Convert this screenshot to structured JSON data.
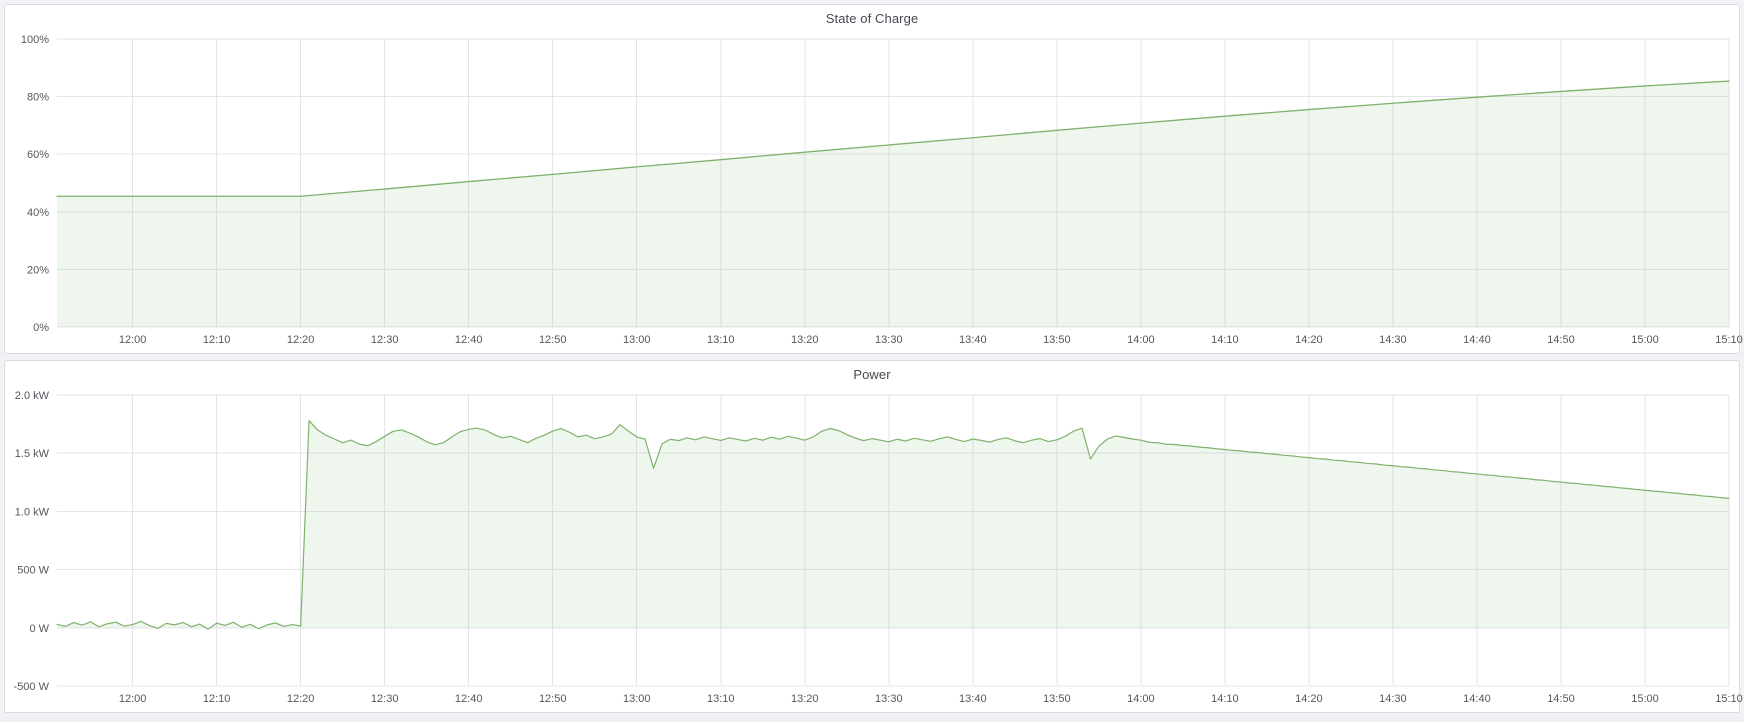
{
  "theme": {
    "page_background": "#f1f2f6",
    "panel_background": "#ffffff",
    "panel_border": "#d9dbe0",
    "grid_color": "#e4e5e9",
    "axis_label_color": "#54575d",
    "title_color": "#434951",
    "series_green": "#7eb26d"
  },
  "chart_data": [
    {
      "type": "area",
      "title": "State of Charge",
      "xlabel": "",
      "ylabel": "",
      "grid": true,
      "legend": "none",
      "x_domain_minutes": [
        711,
        910
      ],
      "x_ticks": {
        "start_minute": 720,
        "step_minute": 10,
        "labels": [
          "12:00",
          "12:10",
          "12:20",
          "12:30",
          "12:40",
          "12:50",
          "13:00",
          "13:10",
          "13:20",
          "13:30",
          "13:40",
          "13:50",
          "14:00",
          "14:10",
          "14:20",
          "14:30",
          "14:40",
          "14:50",
          "15:00",
          "15:10"
        ]
      },
      "ylim": [
        0,
        100
      ],
      "y_ticks": [
        {
          "v": 0,
          "label": "0%"
        },
        {
          "v": 20,
          "label": "20%"
        },
        {
          "v": 40,
          "label": "40%"
        },
        {
          "v": 60,
          "label": "60%"
        },
        {
          "v": 80,
          "label": "80%"
        },
        {
          "v": 100,
          "label": "100%"
        }
      ],
      "series": [
        {
          "name": "State of Charge",
          "color": "#7eb26d",
          "fill_opacity": 0.12,
          "fill_to": 0,
          "line_width": 1.3,
          "points": [
            [
              711,
              45.4
            ],
            [
              740,
              45.4
            ],
            [
              750,
              47.9
            ],
            [
              760,
              50.5
            ],
            [
              770,
              53.0
            ],
            [
              780,
              55.6
            ],
            [
              790,
              58.1
            ],
            [
              800,
              60.7
            ],
            [
              810,
              63.2
            ],
            [
              820,
              65.7
            ],
            [
              830,
              68.3
            ],
            [
              840,
              70.8
            ],
            [
              850,
              73.2
            ],
            [
              860,
              75.5
            ],
            [
              870,
              77.7
            ],
            [
              880,
              79.8
            ],
            [
              890,
              81.8
            ],
            [
              900,
              83.7
            ],
            [
              910,
              85.4
            ]
          ]
        }
      ]
    },
    {
      "type": "area",
      "title": "Power",
      "xlabel": "",
      "ylabel": "",
      "grid": true,
      "legend": "none",
      "x_domain_minutes": [
        711,
        910
      ],
      "x_ticks": {
        "start_minute": 720,
        "step_minute": 10,
        "labels": [
          "12:00",
          "12:10",
          "12:20",
          "12:30",
          "12:40",
          "12:50",
          "13:00",
          "13:10",
          "13:20",
          "13:30",
          "13:40",
          "13:50",
          "14:00",
          "14:10",
          "14:20",
          "14:30",
          "14:40",
          "14:50",
          "15:00",
          "15:10"
        ]
      },
      "ylim": [
        -500,
        2000
      ],
      "y_ticks": [
        {
          "v": -500,
          "label": "-500 W"
        },
        {
          "v": 0,
          "label": "0 W"
        },
        {
          "v": 500,
          "label": "500 W"
        },
        {
          "v": 1000,
          "label": "1.0 kW"
        },
        {
          "v": 1500,
          "label": "1.5 kW"
        },
        {
          "v": 2000,
          "label": "2.0 kW"
        }
      ],
      "series": [
        {
          "name": "Power",
          "color": "#7eb26d",
          "fill_opacity": 0.12,
          "fill_to": 0,
          "line_width": 1.2,
          "t0": 711,
          "dt": 1,
          "values": [
            30,
            12,
            45,
            22,
            52,
            8,
            35,
            48,
            15,
            28,
            55,
            18,
            -5,
            38,
            25,
            45,
            10,
            32,
            -12,
            40,
            20,
            48,
            5,
            30,
            -8,
            25,
            42,
            12,
            28,
            15,
            1780,
            1700,
            1655,
            1622,
            1590,
            1612,
            1578,
            1565,
            1600,
            1645,
            1688,
            1700,
            1672,
            1640,
            1598,
            1572,
            1590,
            1640,
            1685,
            1705,
            1715,
            1698,
            1660,
            1632,
            1645,
            1618,
            1590,
            1628,
            1655,
            1690,
            1712,
            1680,
            1640,
            1655,
            1625,
            1640,
            1665,
            1745,
            1690,
            1640,
            1620,
            1370,
            1580,
            1620,
            1608,
            1632,
            1615,
            1640,
            1625,
            1610,
            1632,
            1618,
            1605,
            1628,
            1612,
            1638,
            1620,
            1645,
            1630,
            1612,
            1640,
            1688,
            1712,
            1695,
            1660,
            1630,
            1608,
            1625,
            1612,
            1598,
            1620,
            1605,
            1628,
            1615,
            1602,
            1625,
            1640,
            1618,
            1600,
            1622,
            1610,
            1595,
            1618,
            1632,
            1606,
            1590,
            1612,
            1625,
            1600,
            1615,
            1645,
            1690,
            1715,
            1450,
            1560,
            1620,
            1648,
            1635,
            1622,
            1612,
            1594,
            1589,
            1578,
            1575,
            1566,
            1561,
            1552,
            1547,
            1538,
            1532,
            1524,
            1519,
            1510,
            1505,
            1496,
            1491,
            1482,
            1477,
            1468,
            1462,
            1454,
            1449,
            1440,
            1435,
            1426,
            1421,
            1412,
            1407,
            1398,
            1392,
            1384,
            1379,
            1370,
            1365,
            1356,
            1351,
            1342,
            1337,
            1328,
            1322,
            1314,
            1309,
            1300,
            1295,
            1286,
            1281,
            1272,
            1267,
            1258,
            1252,
            1244,
            1239,
            1230,
            1225,
            1216,
            1211,
            1202,
            1197,
            1188,
            1182,
            1174,
            1169,
            1160,
            1155,
            1146,
            1141,
            1132,
            1127,
            1118,
            1112
          ]
        }
      ]
    }
  ]
}
